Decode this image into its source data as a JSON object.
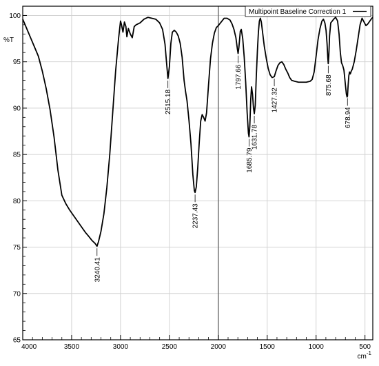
{
  "chart_data": {
    "type": "line",
    "xlabel": "cm-1",
    "ylabel": "%T",
    "xlim": [
      4000,
      420
    ],
    "ylim": [
      65,
      101
    ],
    "grid": true,
    "legend_position": "top-right",
    "x_ticks": [
      4000,
      3500,
      3000,
      2500,
      2000,
      1500,
      1000,
      500
    ],
    "y_ticks": [
      65,
      70,
      75,
      80,
      85,
      90,
      95,
      100
    ],
    "series": [
      {
        "name": "Multipoint Baseline Correction 1",
        "color": "#000000",
        "points": [
          [
            4000,
            99.6
          ],
          [
            3960,
            98.6
          ],
          [
            3920,
            97.6
          ],
          [
            3880,
            96.6
          ],
          [
            3840,
            95.6
          ],
          [
            3800,
            94.0
          ],
          [
            3760,
            92.1
          ],
          [
            3720,
            89.8
          ],
          [
            3680,
            86.9
          ],
          [
            3640,
            83.3
          ],
          [
            3600,
            80.6
          ],
          [
            3560,
            79.7
          ],
          [
            3520,
            79.0
          ],
          [
            3480,
            78.4
          ],
          [
            3440,
            77.8
          ],
          [
            3400,
            77.2
          ],
          [
            3360,
            76.6
          ],
          [
            3320,
            76.1
          ],
          [
            3290,
            75.7
          ],
          [
            3260,
            75.4
          ],
          [
            3240.41,
            75.1
          ],
          [
            3225,
            75.6
          ],
          [
            3200,
            76.7
          ],
          [
            3170,
            78.6
          ],
          [
            3140,
            81.4
          ],
          [
            3110,
            85.0
          ],
          [
            3080,
            89.5
          ],
          [
            3050,
            94.0
          ],
          [
            3020,
            97.5
          ],
          [
            3000,
            99.4
          ],
          [
            2990,
            99.0
          ],
          [
            2975,
            98.2
          ],
          [
            2960,
            99.3
          ],
          [
            2945,
            98.8
          ],
          [
            2935,
            97.7
          ],
          [
            2920,
            98.6
          ],
          [
            2900,
            98.0
          ],
          [
            2880,
            97.6
          ],
          [
            2860,
            98.8
          ],
          [
            2840,
            99.0
          ],
          [
            2800,
            99.2
          ],
          [
            2760,
            99.6
          ],
          [
            2720,
            99.8
          ],
          [
            2680,
            99.7
          ],
          [
            2640,
            99.6
          ],
          [
            2600,
            99.2
          ],
          [
            2570,
            98.5
          ],
          [
            2545,
            96.9
          ],
          [
            2530,
            95.0
          ],
          [
            2515.18,
            93.2
          ],
          [
            2500,
            94.5
          ],
          [
            2485,
            97.0
          ],
          [
            2470,
            98.2
          ],
          [
            2450,
            98.4
          ],
          [
            2430,
            98.2
          ],
          [
            2410,
            97.8
          ],
          [
            2390,
            97.0
          ],
          [
            2370,
            95.5
          ],
          [
            2350,
            93.0
          ],
          [
            2335,
            91.8
          ],
          [
            2320,
            90.8
          ],
          [
            2300,
            88.7
          ],
          [
            2280,
            86.2
          ],
          [
            2260,
            82.8
          ],
          [
            2245,
            81.1
          ],
          [
            2237.43,
            80.9
          ],
          [
            2225,
            81.5
          ],
          [
            2210,
            83.6
          ],
          [
            2195,
            86.3
          ],
          [
            2180,
            88.6
          ],
          [
            2165,
            89.3
          ],
          [
            2150,
            89.0
          ],
          [
            2135,
            88.6
          ],
          [
            2120,
            89.5
          ],
          [
            2100,
            92.5
          ],
          [
            2080,
            95.3
          ],
          [
            2060,
            97.0
          ],
          [
            2040,
            98.1
          ],
          [
            2020,
            98.7
          ],
          [
            2000,
            98.9
          ],
          [
            1970,
            99.3
          ],
          [
            1940,
            99.7
          ],
          [
            1910,
            99.7
          ],
          [
            1880,
            99.5
          ],
          [
            1860,
            99.1
          ],
          [
            1840,
            98.5
          ],
          [
            1820,
            97.6
          ],
          [
            1805,
            96.4
          ],
          [
            1797.66,
            95.9
          ],
          [
            1790,
            96.5
          ],
          [
            1775,
            98.3
          ],
          [
            1765,
            98.5
          ],
          [
            1750,
            97.5
          ],
          [
            1735,
            95.5
          ],
          [
            1720,
            92.8
          ],
          [
            1705,
            89.5
          ],
          [
            1692,
            87.3
          ],
          [
            1685.79,
            86.9
          ],
          [
            1678,
            88.0
          ],
          [
            1668,
            91.0
          ],
          [
            1660,
            92.3
          ],
          [
            1650,
            91.5
          ],
          [
            1640,
            90.0
          ],
          [
            1631.78,
            89.4
          ],
          [
            1622,
            90.3
          ],
          [
            1612,
            93.3
          ],
          [
            1600,
            96.2
          ],
          [
            1590,
            98.2
          ],
          [
            1580,
            99.4
          ],
          [
            1570,
            99.7
          ],
          [
            1560,
            99.3
          ],
          [
            1545,
            98.0
          ],
          [
            1530,
            96.7
          ],
          [
            1510,
            95.4
          ],
          [
            1490,
            94.3
          ],
          [
            1470,
            93.6
          ],
          [
            1450,
            93.3
          ],
          [
            1427.32,
            93.4
          ],
          [
            1410,
            94.0
          ],
          [
            1390,
            94.6
          ],
          [
            1370,
            94.9
          ],
          [
            1350,
            95.0
          ],
          [
            1330,
            94.7
          ],
          [
            1310,
            94.2
          ],
          [
            1290,
            93.8
          ],
          [
            1270,
            93.3
          ],
          [
            1250,
            93.0
          ],
          [
            1220,
            92.9
          ],
          [
            1180,
            92.8
          ],
          [
            1140,
            92.8
          ],
          [
            1100,
            92.8
          ],
          [
            1060,
            92.9
          ],
          [
            1040,
            93.1
          ],
          [
            1020,
            93.9
          ],
          [
            1000,
            95.6
          ],
          [
            980,
            97.4
          ],
          [
            960,
            98.6
          ],
          [
            940,
            99.4
          ],
          [
            925,
            99.6
          ],
          [
            910,
            99.2
          ],
          [
            898,
            98.4
          ],
          [
            888,
            97.0
          ],
          [
            880,
            95.4
          ],
          [
            875.68,
            94.8
          ],
          [
            870,
            95.6
          ],
          [
            862,
            97.8
          ],
          [
            850,
            99.2
          ],
          [
            835,
            99.4
          ],
          [
            820,
            99.6
          ],
          [
            800,
            99.8
          ],
          [
            780,
            99.4
          ],
          [
            765,
            98.0
          ],
          [
            752,
            96.0
          ],
          [
            740,
            94.9
          ],
          [
            728,
            94.6
          ],
          [
            715,
            94.1
          ],
          [
            700,
            92.5
          ],
          [
            690,
            91.5
          ],
          [
            683,
            91.2
          ],
          [
            678.94,
            91.3
          ],
          [
            672,
            92.5
          ],
          [
            665,
            93.5
          ],
          [
            658,
            93.9
          ],
          [
            650,
            93.7
          ],
          [
            640,
            94.0
          ],
          [
            630,
            94.2
          ],
          [
            610,
            95.0
          ],
          [
            590,
            96.2
          ],
          [
            570,
            97.6
          ],
          [
            550,
            99.0
          ],
          [
            530,
            99.7
          ],
          [
            510,
            99.3
          ],
          [
            490,
            98.9
          ],
          [
            470,
            99.1
          ],
          [
            450,
            99.4
          ],
          [
            430,
            99.7
          ],
          [
            420,
            99.8
          ]
        ]
      }
    ],
    "annotations": [
      {
        "text": "3240.41",
        "x": 3240.41,
        "y": 75.1
      },
      {
        "text": "2515.18",
        "x": 2515.18,
        "y": 93.2
      },
      {
        "text": "2237.43",
        "x": 2237.43,
        "y": 80.9
      },
      {
        "text": "1797.66",
        "x": 1797.66,
        "y": 95.9
      },
      {
        "text": "1685.79",
        "x": 1685.79,
        "y": 86.9
      },
      {
        "text": "1631.78",
        "x": 1631.78,
        "y": 89.4
      },
      {
        "text": "1427.32",
        "x": 1427.32,
        "y": 93.4
      },
      {
        "text": "875.68",
        "x": 875.68,
        "y": 94.8
      },
      {
        "text": "678.94",
        "x": 678.94,
        "y": 91.3
      }
    ]
  }
}
